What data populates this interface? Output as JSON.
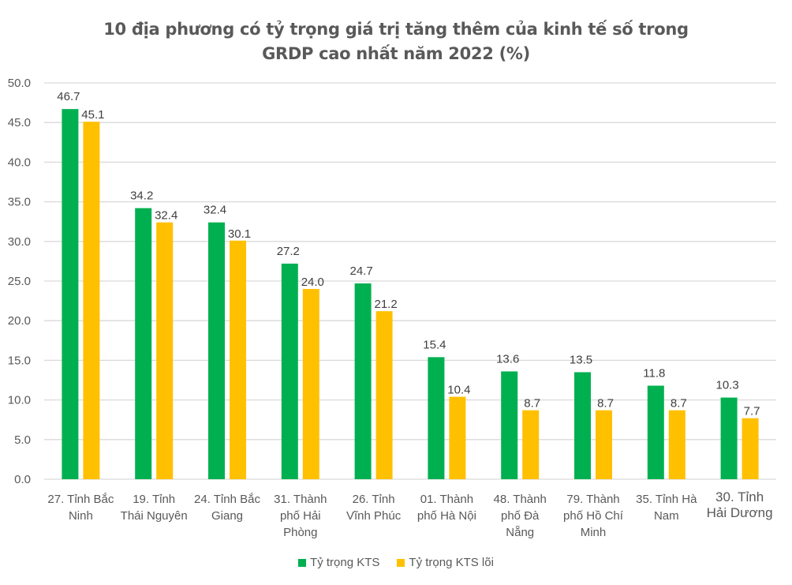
{
  "chart_data": {
    "type": "bar",
    "title": [
      "10 địa phương có tỷ trọng giá trị tăng thêm của kinh tế số trong",
      "GRDP cao nhất năm 2022 (%)"
    ],
    "xlabel": "",
    "ylabel": "",
    "ylim": [
      0,
      50
    ],
    "yticks": [
      "0.0",
      "5.0",
      "10.0",
      "15.0",
      "20.0",
      "25.0",
      "30.0",
      "35.0",
      "40.0",
      "45.0",
      "50.0"
    ],
    "grid": true,
    "legend_position": "bottom",
    "categories": [
      [
        "27. Tỉnh Bắc",
        "Ninh"
      ],
      [
        "19. Tỉnh",
        "Thái Nguyên"
      ],
      [
        "24. Tỉnh Bắc",
        "Giang"
      ],
      [
        "31. Thành",
        "phố Hải",
        "Phòng"
      ],
      [
        "26. Tỉnh",
        "Vĩnh Phúc"
      ],
      [
        "01. Thành",
        "phố Hà Nội"
      ],
      [
        "48. Thành",
        "phố Đà",
        "Nẵng"
      ],
      [
        "79. Thành",
        "phố Hồ Chí",
        "Minh"
      ],
      [
        "35. Tỉnh Hà",
        "Nam"
      ],
      [
        "30. Tỉnh",
        "Hải Dương"
      ]
    ],
    "series": [
      {
        "name": "Tỷ trọng KTS",
        "color": "#00B050",
        "values": [
          46.7,
          34.2,
          32.4,
          27.2,
          24.7,
          15.4,
          13.6,
          13.5,
          11.8,
          10.3
        ]
      },
      {
        "name": "Tỷ trọng KTS lõi",
        "color": "#FFC000",
        "values": [
          45.1,
          32.4,
          30.1,
          24.0,
          21.2,
          10.4,
          8.7,
          8.7,
          8.7,
          7.7
        ]
      }
    ]
  }
}
